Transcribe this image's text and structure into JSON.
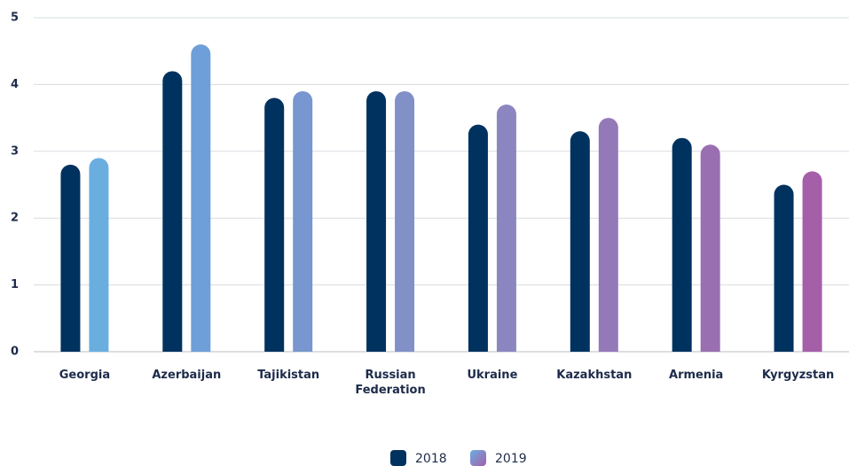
{
  "chart_data": {
    "type": "bar",
    "categories": [
      "Georgia",
      "Azerbaijan",
      "Tajikistan",
      "Russian Federation",
      "Ukraine",
      "Kazakhstan",
      "Armenia",
      "Kyrgyzstan"
    ],
    "series": [
      {
        "name": "2018",
        "color": "#00325f",
        "values": [
          2.8,
          4.2,
          3.8,
          3.9,
          3.4,
          3.3,
          3.2,
          2.5
        ]
      },
      {
        "name": "2019",
        "color": "#8c86c0",
        "colors": [
          "#6aaee0",
          "#6f9fd8",
          "#7896cf",
          "#8290c8",
          "#8c86c0",
          "#9479b8",
          "#9a6fb2",
          "#a45fa8"
        ],
        "values": [
          2.9,
          4.6,
          3.9,
          3.9,
          3.7,
          3.5,
          3.1,
          2.7
        ]
      }
    ],
    "ylim": [
      0,
      5
    ],
    "yticks": [
      0,
      1,
      2,
      3,
      4,
      5
    ],
    "grid": true,
    "legend": "bottom"
  }
}
